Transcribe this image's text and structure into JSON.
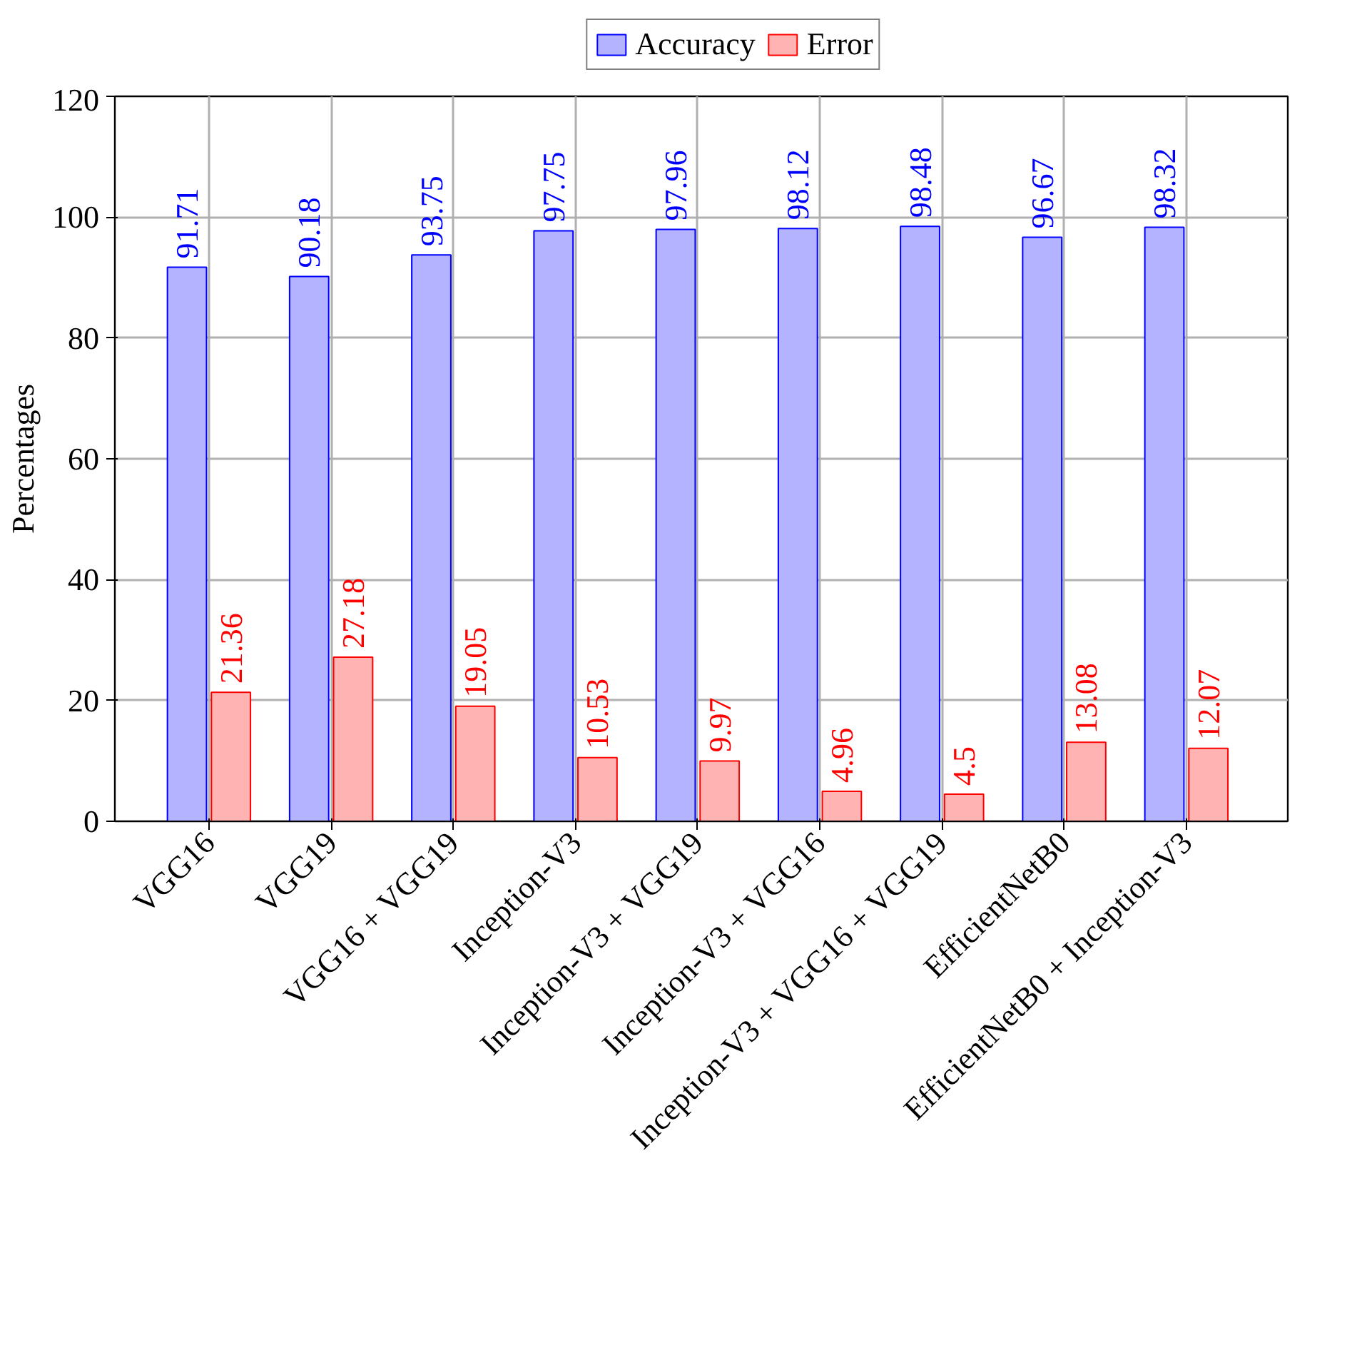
{
  "chart_data": {
    "type": "bar",
    "ylabel": "Percentages",
    "categories": [
      "VGG16",
      "VGG19",
      "VGG16 + VGG19",
      "Inception-V3",
      "Inception-V3 + VGG19",
      "Inception-V3 + VGG16",
      "Inception-V3 + VGG16 + VGG19",
      "EfficientNetB0",
      "EfficientNetB0 + Inception-V3"
    ],
    "series": [
      {
        "name": "Accuracy",
        "color": "#b3b3ff",
        "values": [
          91.71,
          90.18,
          93.75,
          97.75,
          97.96,
          98.12,
          98.48,
          96.67,
          98.32
        ]
      },
      {
        "name": "Error",
        "color": "#ffb3b3",
        "values": [
          21.36,
          27.18,
          19.05,
          10.53,
          9.97,
          4.96,
          4.5,
          13.08,
          12.07
        ]
      }
    ],
    "ylim": [
      0,
      120
    ],
    "yticks": [
      0,
      20,
      40,
      60,
      80,
      100,
      120
    ],
    "grid": true,
    "legend": "top",
    "data_labels": true
  }
}
